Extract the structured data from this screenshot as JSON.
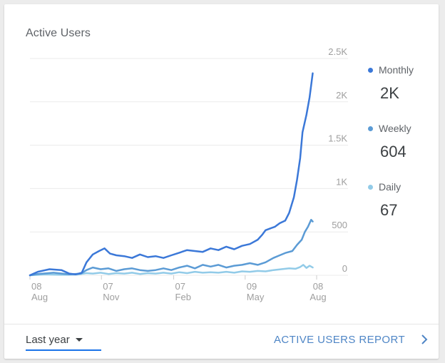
{
  "card": {
    "title": "Active Users"
  },
  "chart_data": {
    "type": "line",
    "title": "Active Users",
    "xlabel": "",
    "ylabel": "",
    "ylim": [
      0,
      2500
    ],
    "y_ticks": [
      {
        "value": 0,
        "label": "0"
      },
      {
        "value": 500,
        "label": "500"
      },
      {
        "value": 1000,
        "label": "1K"
      },
      {
        "value": 1500,
        "label": "1.5K"
      },
      {
        "value": 2000,
        "label": "2K"
      },
      {
        "value": 2500,
        "label": "2.5K"
      }
    ],
    "x_ticks": [
      {
        "value": 0,
        "day": "08",
        "month": "Aug"
      },
      {
        "value": 91,
        "day": "07",
        "month": "Nov"
      },
      {
        "value": 183,
        "day": "07",
        "month": "Feb"
      },
      {
        "value": 274,
        "day": "09",
        "month": "May"
      },
      {
        "value": 365,
        "day": "08",
        "month": "Aug"
      }
    ],
    "xlim": [
      0,
      365
    ],
    "grid": true,
    "legend_position": "right",
    "series": [
      {
        "name": "Monthly",
        "color": "#3b78d8",
        "points": [
          [
            0,
            0
          ],
          [
            10,
            40
          ],
          [
            25,
            70
          ],
          [
            40,
            60
          ],
          [
            50,
            20
          ],
          [
            58,
            10
          ],
          [
            66,
            30
          ],
          [
            72,
            150
          ],
          [
            80,
            240
          ],
          [
            88,
            280
          ],
          [
            95,
            310
          ],
          [
            102,
            250
          ],
          [
            110,
            230
          ],
          [
            120,
            220
          ],
          [
            130,
            200
          ],
          [
            140,
            240
          ],
          [
            150,
            210
          ],
          [
            160,
            220
          ],
          [
            170,
            200
          ],
          [
            180,
            230
          ],
          [
            190,
            260
          ],
          [
            200,
            290
          ],
          [
            210,
            280
          ],
          [
            220,
            270
          ],
          [
            230,
            310
          ],
          [
            240,
            290
          ],
          [
            250,
            330
          ],
          [
            260,
            300
          ],
          [
            270,
            340
          ],
          [
            280,
            360
          ],
          [
            290,
            410
          ],
          [
            296,
            470
          ],
          [
            300,
            520
          ],
          [
            306,
            540
          ],
          [
            312,
            560
          ],
          [
            318,
            600
          ],
          [
            325,
            630
          ],
          [
            330,
            720
          ],
          [
            336,
            900
          ],
          [
            340,
            1100
          ],
          [
            344,
            1350
          ],
          [
            347,
            1650
          ],
          [
            352,
            1850
          ],
          [
            356,
            2050
          ],
          [
            360,
            2330
          ]
        ]
      },
      {
        "name": "Weekly",
        "color": "#5b9bd5",
        "points": [
          [
            0,
            0
          ],
          [
            10,
            15
          ],
          [
            30,
            30
          ],
          [
            50,
            10
          ],
          [
            65,
            20
          ],
          [
            72,
            60
          ],
          [
            80,
            90
          ],
          [
            90,
            70
          ],
          [
            100,
            80
          ],
          [
            110,
            50
          ],
          [
            120,
            70
          ],
          [
            130,
            80
          ],
          [
            140,
            60
          ],
          [
            150,
            50
          ],
          [
            160,
            60
          ],
          [
            170,
            80
          ],
          [
            180,
            60
          ],
          [
            190,
            90
          ],
          [
            200,
            110
          ],
          [
            210,
            80
          ],
          [
            220,
            120
          ],
          [
            230,
            100
          ],
          [
            240,
            120
          ],
          [
            250,
            90
          ],
          [
            260,
            110
          ],
          [
            270,
            120
          ],
          [
            280,
            140
          ],
          [
            290,
            120
          ],
          [
            300,
            150
          ],
          [
            310,
            200
          ],
          [
            318,
            230
          ],
          [
            326,
            260
          ],
          [
            334,
            280
          ],
          [
            340,
            350
          ],
          [
            346,
            410
          ],
          [
            350,
            500
          ],
          [
            354,
            560
          ],
          [
            358,
            640
          ],
          [
            360,
            620
          ]
        ]
      },
      {
        "name": "Daily",
        "color": "#92cbe8",
        "points": [
          [
            0,
            0
          ],
          [
            20,
            10
          ],
          [
            40,
            5
          ],
          [
            60,
            8
          ],
          [
            72,
            25
          ],
          [
            80,
            20
          ],
          [
            90,
            30
          ],
          [
            100,
            15
          ],
          [
            110,
            25
          ],
          [
            120,
            20
          ],
          [
            130,
            30
          ],
          [
            140,
            15
          ],
          [
            150,
            25
          ],
          [
            160,
            20
          ],
          [
            170,
            30
          ],
          [
            180,
            20
          ],
          [
            190,
            35
          ],
          [
            200,
            25
          ],
          [
            210,
            40
          ],
          [
            220,
            30
          ],
          [
            230,
            35
          ],
          [
            240,
            30
          ],
          [
            250,
            40
          ],
          [
            260,
            30
          ],
          [
            270,
            45
          ],
          [
            280,
            40
          ],
          [
            290,
            50
          ],
          [
            300,
            45
          ],
          [
            310,
            60
          ],
          [
            320,
            70
          ],
          [
            330,
            80
          ],
          [
            338,
            75
          ],
          [
            344,
            95
          ],
          [
            348,
            120
          ],
          [
            352,
            85
          ],
          [
            356,
            110
          ],
          [
            360,
            90
          ]
        ]
      }
    ]
  },
  "legend": [
    {
      "label": "Monthly",
      "value": "2K",
      "color": "#3b78d8"
    },
    {
      "label": "Weekly",
      "value": "604",
      "color": "#5b9bd5"
    },
    {
      "label": "Daily",
      "value": "67",
      "color": "#92cbe8"
    }
  ],
  "footer": {
    "range_label": "Last year",
    "report_label": "ACTIVE USERS REPORT"
  }
}
